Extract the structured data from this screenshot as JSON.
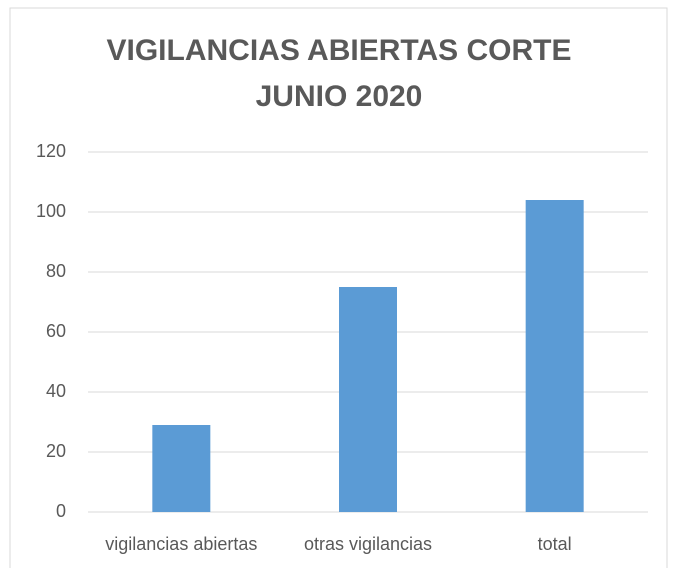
{
  "chart_data": {
    "type": "bar",
    "title": "VIGILANCIAS ABIERTAS CORTE JUNIO 2020",
    "categories": [
      "vigilancias abiertas",
      "otras vigilancias",
      "total"
    ],
    "values": [
      29,
      75,
      104
    ],
    "color": "#5b9bd5",
    "ylim": [
      0,
      120
    ],
    "yticks": [
      0,
      20,
      40,
      60,
      80,
      100,
      120
    ],
    "grid": true
  }
}
